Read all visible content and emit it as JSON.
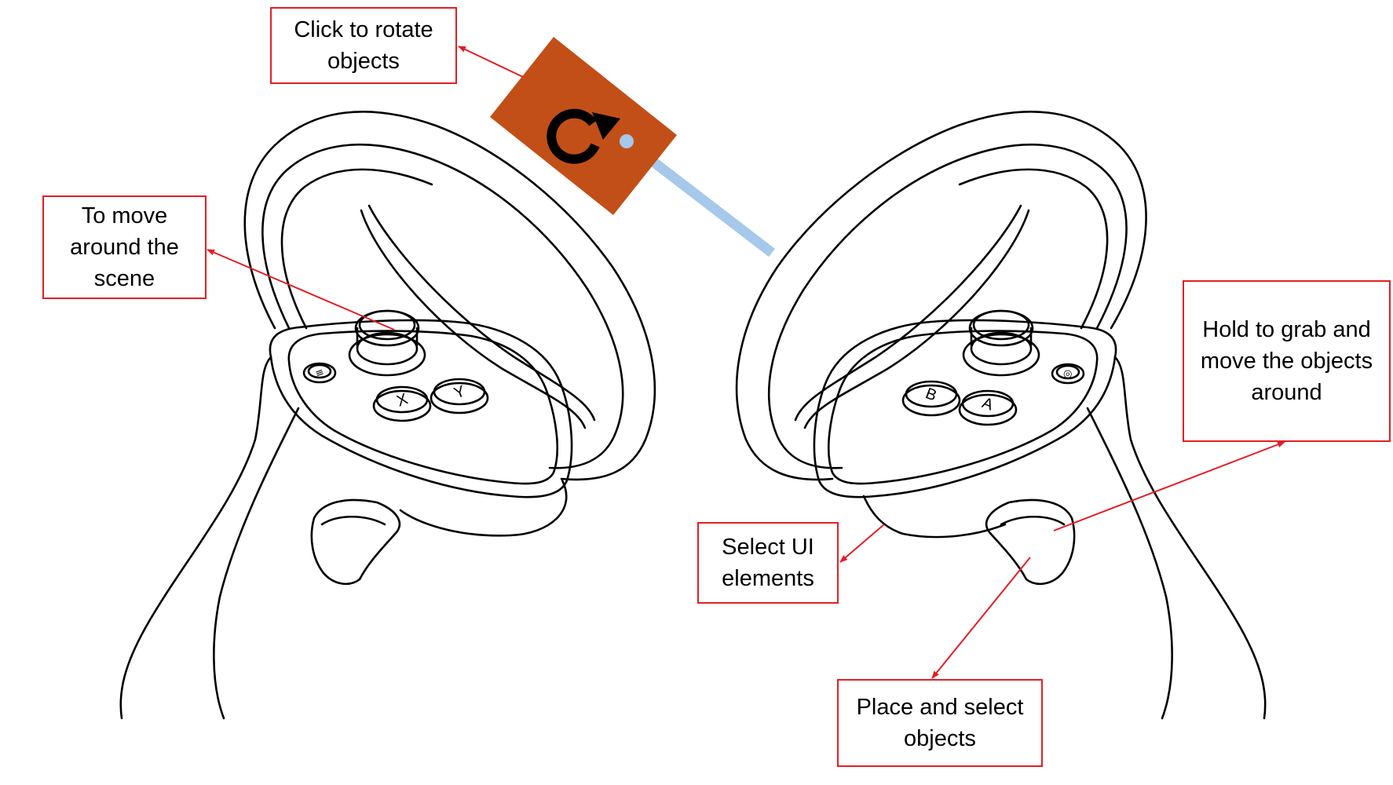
{
  "callouts": {
    "rotate": "Click to rotate objects",
    "move": "To move around the scene",
    "grab": "Hold to grab and move the objects around",
    "select_ui": "Select UI elements",
    "place": "Place and select objects"
  },
  "controllers": {
    "left_buttons": [
      "X",
      "Y"
    ],
    "left_menu_glyph": "≡",
    "right_buttons": [
      "B",
      "A"
    ],
    "right_menu_glyph": "◎"
  },
  "colors": {
    "callout_border": "#e31e24",
    "arrow": "#e31e24",
    "rotate_panel": "#c24f17",
    "laser_ray": "#a6c8ea",
    "outline": "#000000"
  },
  "icons": [
    "rotate-icon"
  ]
}
